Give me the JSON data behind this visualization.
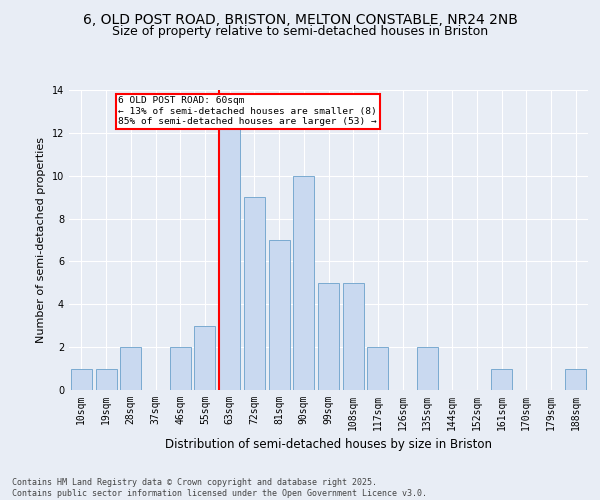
{
  "title_line1": "6, OLD POST ROAD, BRISTON, MELTON CONSTABLE, NR24 2NB",
  "title_line2": "Size of property relative to semi-detached houses in Briston",
  "xlabel": "Distribution of semi-detached houses by size in Briston",
  "ylabel": "Number of semi-detached properties",
  "footnote": "Contains HM Land Registry data © Crown copyright and database right 2025.\nContains public sector information licensed under the Open Government Licence v3.0.",
  "categories": [
    "10sqm",
    "19sqm",
    "28sqm",
    "37sqm",
    "46sqm",
    "55sqm",
    "63sqm",
    "72sqm",
    "81sqm",
    "90sqm",
    "99sqm",
    "108sqm",
    "117sqm",
    "126sqm",
    "135sqm",
    "144sqm",
    "152sqm",
    "161sqm",
    "170sqm",
    "179sqm",
    "188sqm"
  ],
  "values": [
    1,
    1,
    2,
    0,
    2,
    3,
    13,
    9,
    7,
    10,
    5,
    5,
    2,
    0,
    2,
    0,
    0,
    1,
    0,
    0,
    1
  ],
  "bar_color": "#c9d9f0",
  "bar_edge_color": "#7aaad0",
  "red_line_index": 6,
  "annotation_text": "6 OLD POST ROAD: 60sqm\n← 13% of semi-detached houses are smaller (8)\n85% of semi-detached houses are larger (53) →",
  "annotation_box_facecolor": "white",
  "annotation_box_edgecolor": "red",
  "ylim": [
    0,
    14
  ],
  "yticks": [
    0,
    2,
    4,
    6,
    8,
    10,
    12,
    14
  ],
  "bg_color": "#e8edf5",
  "plot_bg_color": "#e8edf5",
  "grid_color": "white",
  "title_fontsize": 10,
  "subtitle_fontsize": 9,
  "axis_label_fontsize": 8.5,
  "tick_fontsize": 7,
  "footnote_fontsize": 6,
  "ylabel_fontsize": 8
}
